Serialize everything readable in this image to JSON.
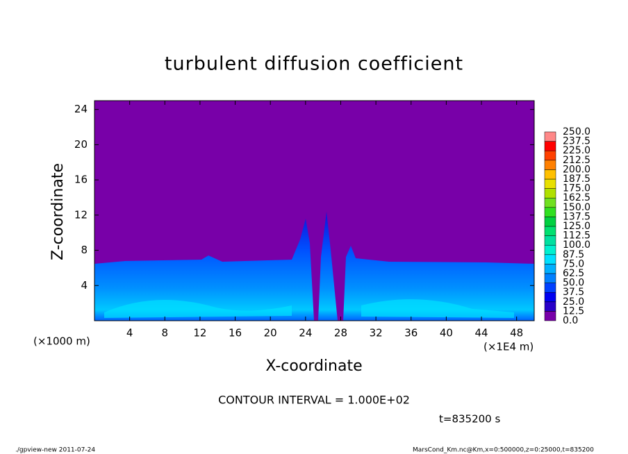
{
  "chart_data": {
    "type": "contour",
    "title": "turbulent diffusion coefficient",
    "xlabel": "X-coordinate",
    "ylabel": "Z-coordinate",
    "y_unit": "(×1000 m)",
    "x_unit": "(×1E4 m)",
    "xlim": [
      0,
      50
    ],
    "xticks": [
      4,
      8,
      12,
      16,
      20,
      24,
      28,
      32,
      36,
      40,
      44,
      48
    ],
    "ylim": [
      0,
      25
    ],
    "yticks": [
      4,
      8,
      12,
      16,
      20,
      24
    ],
    "levels": [
      {
        "value": 0,
        "label": "0.0"
      },
      {
        "value": 12.5,
        "label": "12.5"
      },
      {
        "value": 25,
        "label": "25.0"
      },
      {
        "value": 37.5,
        "label": "37.5"
      },
      {
        "value": 50,
        "label": "50.0"
      },
      {
        "value": 62.5,
        "label": "62.5"
      },
      {
        "value": 75,
        "label": "75.0"
      },
      {
        "value": 87.5,
        "label": "87.5"
      },
      {
        "value": 100,
        "label": "100.0"
      },
      {
        "value": 112.5,
        "label": "112.5"
      },
      {
        "value": 125,
        "label": "125.0"
      },
      {
        "value": 137.5,
        "label": "137.5"
      },
      {
        "value": 150,
        "label": "150.0"
      },
      {
        "value": 162.5,
        "label": "162.5"
      },
      {
        "value": 175,
        "label": "175.0"
      },
      {
        "value": 187.5,
        "label": "187.5"
      },
      {
        "value": 200,
        "label": "200.0"
      },
      {
        "value": 212.5,
        "label": "212.5"
      },
      {
        "value": 225,
        "label": "225.0"
      },
      {
        "value": 237.5,
        "label": "237.5"
      },
      {
        "value": 250,
        "label": "250.0"
      }
    ],
    "colors": [
      "#7800a8",
      "#2800c8",
      "#0000f0",
      "#0040ff",
      "#0080ff",
      "#00b0ff",
      "#00e0ff",
      "#00f0d0",
      "#00e0a0",
      "#00e070",
      "#00d040",
      "#30e020",
      "#70e020",
      "#b0e000",
      "#e8e000",
      "#ffc000",
      "#ff8000",
      "#ff4000",
      "#ff0000",
      "#ff8888"
    ],
    "contour_interval": "CONTOUR INTERVAL = 1.000E+02",
    "time_label": "t=835200 s",
    "footer_left": "./gpview-new  2011-07-24",
    "footer_right": "MarsCond_Km.nc@Km,x=0:500000,z=0:25000,t=835200"
  }
}
